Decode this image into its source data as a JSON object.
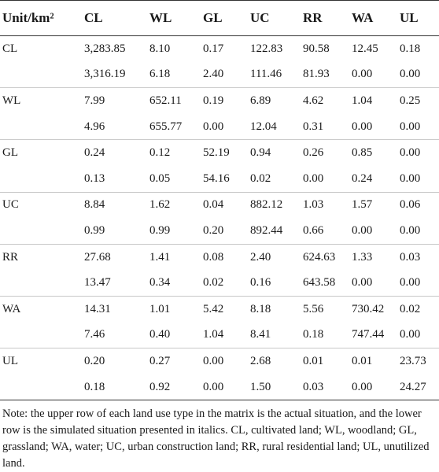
{
  "table": {
    "header": [
      "Unit/km²",
      "CL",
      "WL",
      "GL",
      "UC",
      "RR",
      "WA",
      "UL"
    ],
    "rows": [
      {
        "type": "CL",
        "actual": [
          "3,283.85",
          "8.10",
          "0.17",
          "122.83",
          "90.58",
          "12.45",
          "0.18"
        ],
        "simulated": [
          "3,316.19",
          "6.18",
          "2.40",
          "111.46",
          "81.93",
          "0.00",
          "0.00"
        ]
      },
      {
        "type": "WL",
        "actual": [
          "7.99",
          "652.11",
          "0.19",
          "6.89",
          "4.62",
          "1.04",
          "0.25"
        ],
        "simulated": [
          "4.96",
          "655.77",
          "0.00",
          "12.04",
          "0.31",
          "0.00",
          "0.00"
        ]
      },
      {
        "type": "GL",
        "actual": [
          "0.24",
          "0.12",
          "52.19",
          "0.94",
          "0.26",
          "0.85",
          "0.00"
        ],
        "simulated": [
          "0.13",
          "0.05",
          "54.16",
          "0.02",
          "0.00",
          "0.24",
          "0.00"
        ]
      },
      {
        "type": "UC",
        "actual": [
          "8.84",
          "1.62",
          "0.04",
          "882.12",
          "1.03",
          "1.57",
          "0.06"
        ],
        "simulated": [
          "0.99",
          "0.99",
          "0.20",
          "892.44",
          "0.66",
          "0.00",
          "0.00"
        ]
      },
      {
        "type": "RR",
        "actual": [
          "27.68",
          "1.41",
          "0.08",
          "2.40",
          "624.63",
          "1.33",
          "0.03"
        ],
        "simulated": [
          "13.47",
          "0.34",
          "0.02",
          "0.16",
          "643.58",
          "0.00",
          "0.00"
        ]
      },
      {
        "type": "WA",
        "actual": [
          "14.31",
          "1.01",
          "5.42",
          "8.18",
          "5.56",
          "730.42",
          "0.02"
        ],
        "simulated": [
          "7.46",
          "0.40",
          "1.04",
          "8.41",
          "0.18",
          "747.44",
          "0.00"
        ]
      },
      {
        "type": "UL",
        "actual": [
          "0.20",
          "0.27",
          "0.00",
          "2.68",
          "0.01",
          "0.01",
          "23.73"
        ],
        "simulated": [
          "0.18",
          "0.92",
          "0.00",
          "1.50",
          "0.03",
          "0.00",
          "24.27"
        ]
      }
    ],
    "note": "Note: the upper row of each land use type in the matrix is the actual situation, and the lower row is the simulated situation presented in italics. CL, cultivated land; WL, woodland; GL, grassland; WA, water; UC, urban construction land; RR, rural residential land; UL, unutilized land."
  }
}
